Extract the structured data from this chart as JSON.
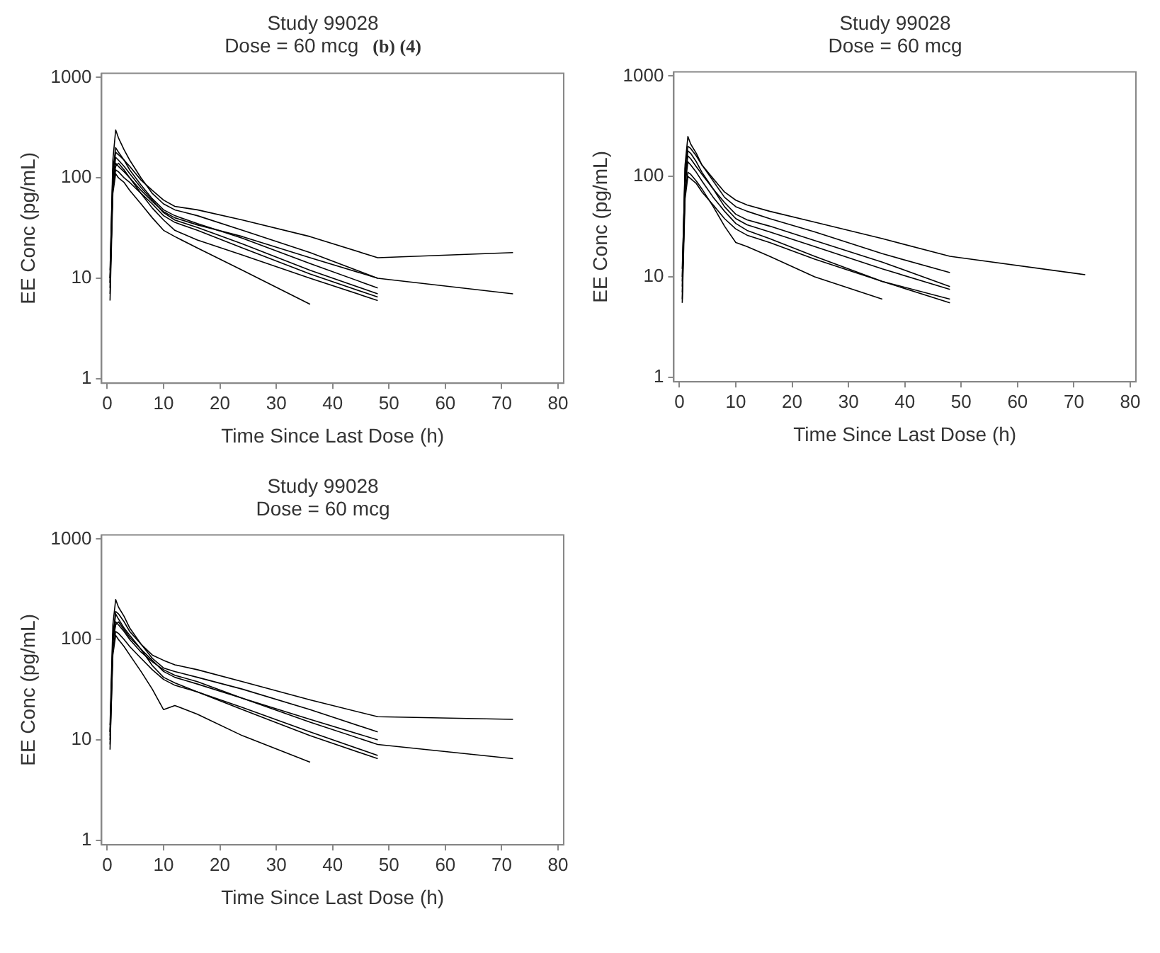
{
  "chart_data": [
    {
      "type": "line",
      "title": "Study 99028",
      "subtitle": "Dose =  60 mcg",
      "annotations": [
        "(b) (4)"
      ],
      "xlabel": "Time Since Last Dose (h)",
      "ylabel": "EE Conc (pg/mL)",
      "log": "y",
      "xlim": [
        -1,
        81
      ],
      "xticks": [
        0,
        10,
        20,
        30,
        40,
        50,
        60,
        70,
        80
      ],
      "ylim": [
        0.9,
        1100
      ],
      "yticks": [
        1,
        10,
        100,
        1000
      ],
      "grid": false,
      "series": [
        {
          "color": "#000000",
          "x": [
            0.5,
            1,
            1.5,
            2,
            3,
            4,
            6,
            8,
            10,
            12,
            16,
            24,
            36,
            48
          ],
          "values": [
            8,
            90,
            160,
            150,
            130,
            110,
            80,
            60,
            45,
            38,
            32,
            22,
            12,
            7
          ]
        },
        {
          "color": "#000000",
          "x": [
            0.5,
            1,
            1.5,
            2,
            3,
            4,
            6,
            8,
            10,
            12,
            16,
            24,
            36,
            48
          ],
          "values": [
            12,
            120,
            200,
            180,
            150,
            120,
            85,
            62,
            48,
            42,
            35,
            25,
            14,
            8
          ]
        },
        {
          "color": "#000000",
          "x": [
            0.5,
            1,
            1.5,
            2,
            3,
            4,
            6,
            8,
            10,
            12,
            16,
            24,
            36
          ],
          "values": [
            6,
            70,
            110,
            100,
            90,
            75,
            55,
            40,
            30,
            26,
            20,
            12,
            5.5
          ]
        },
        {
          "color": "#000000",
          "x": [
            0.5,
            1,
            1.5,
            2,
            3,
            4,
            6,
            8,
            10,
            12,
            16,
            24,
            36,
            48
          ],
          "values": [
            10,
            150,
            300,
            250,
            190,
            150,
            100,
            70,
            55,
            48,
            42,
            30,
            18,
            10
          ]
        },
        {
          "color": "#000000",
          "x": [
            0.5,
            1,
            1.5,
            2,
            3,
            4,
            6,
            8,
            10,
            12,
            16,
            24,
            36,
            48
          ],
          "values": [
            9,
            80,
            120,
            115,
            100,
            90,
            70,
            55,
            42,
            36,
            30,
            20,
            11,
            6.5
          ]
        },
        {
          "color": "#000000",
          "x": [
            0.5,
            1,
            1.5,
            2,
            3,
            4,
            6,
            8,
            10,
            12,
            16,
            24,
            36,
            48,
            72
          ],
          "values": [
            10,
            110,
            180,
            170,
            150,
            130,
            95,
            75,
            60,
            52,
            48,
            38,
            26,
            16,
            18
          ]
        },
        {
          "color": "#000000",
          "x": [
            0.5,
            1,
            1.5,
            2,
            3,
            4,
            6,
            8,
            10,
            12,
            16,
            24,
            36,
            48,
            72
          ],
          "values": [
            7,
            100,
            140,
            130,
            115,
            100,
            75,
            58,
            46,
            40,
            34,
            26,
            16,
            10,
            7
          ]
        },
        {
          "color": "#000000",
          "x": [
            0.5,
            1,
            1.5,
            2,
            3,
            4,
            6,
            8,
            10,
            12,
            16,
            24,
            36,
            48
          ],
          "values": [
            9,
            90,
            130,
            140,
            120,
            100,
            70,
            50,
            38,
            30,
            24,
            17,
            10,
            6
          ]
        }
      ]
    },
    {
      "type": "line",
      "title": "Study 99028",
      "subtitle": "Dose =  60 mcg",
      "xlabel": "Time Since Last Dose (h)",
      "ylabel": "EE Conc (pg/mL)",
      "log": "y",
      "xlim": [
        -1,
        81
      ],
      "xticks": [
        0,
        10,
        20,
        30,
        40,
        50,
        60,
        70,
        80
      ],
      "ylim": [
        0.9,
        1100
      ],
      "yticks": [
        1,
        10,
        100,
        1000
      ],
      "grid": false,
      "series": [
        {
          "color": "#000000",
          "x": [
            0.5,
            1,
            1.5,
            2,
            3,
            4,
            6,
            8,
            10,
            12,
            16,
            24,
            36,
            48
          ],
          "values": [
            6,
            90,
            180,
            170,
            140,
            110,
            75,
            50,
            38,
            33,
            28,
            20,
            12,
            7.5
          ]
        },
        {
          "color": "#000000",
          "x": [
            0.5,
            1,
            1.5,
            2,
            3,
            4,
            6,
            8,
            10,
            12,
            16,
            24,
            36,
            48
          ],
          "values": [
            10,
            130,
            250,
            210,
            170,
            130,
            90,
            62,
            50,
            45,
            38,
            28,
            17,
            11
          ]
        },
        {
          "color": "#000000",
          "x": [
            0.5,
            1,
            1.5,
            2,
            3,
            4,
            6,
            8,
            10,
            12,
            16,
            24,
            36
          ],
          "values": [
            8,
            70,
            110,
            105,
            90,
            75,
            50,
            32,
            22,
            20,
            16,
            10,
            6
          ]
        },
        {
          "color": "#000000",
          "x": [
            0.5,
            1,
            1.5,
            2,
            3,
            4,
            6,
            8,
            10,
            12,
            16,
            24,
            36,
            48,
            72
          ],
          "values": [
            9,
            120,
            200,
            190,
            160,
            130,
            95,
            70,
            58,
            52,
            45,
            35,
            24,
            16,
            10.5
          ]
        },
        {
          "color": "#000000",
          "x": [
            0.5,
            1,
            1.5,
            2,
            3,
            4,
            6,
            8,
            10,
            12,
            16,
            24,
            36,
            48
          ],
          "values": [
            7,
            80,
            140,
            130,
            110,
            90,
            62,
            45,
            34,
            29,
            24,
            16,
            9,
            5.5
          ]
        },
        {
          "color": "#000000",
          "x": [
            0.5,
            1,
            1.5,
            2,
            3,
            4,
            6,
            8,
            10,
            12,
            16,
            24,
            36,
            48
          ],
          "values": [
            12,
            100,
            160,
            150,
            125,
            105,
            75,
            55,
            42,
            37,
            32,
            23,
            14,
            8
          ]
        },
        {
          "color": "#000000",
          "x": [
            0.5,
            1,
            1.5,
            2,
            3,
            4,
            6,
            8,
            10,
            12,
            16,
            24,
            36,
            48
          ],
          "values": [
            5.5,
            60,
            100,
            95,
            85,
            70,
            52,
            38,
            30,
            26,
            22,
            15,
            9,
            6
          ]
        }
      ]
    },
    {
      "type": "line",
      "title": "Study 99028",
      "subtitle": "Dose =  60 mcg",
      "xlabel": "Time Since Last Dose (h)",
      "ylabel": "EE Conc (pg/mL)",
      "log": "y",
      "xlim": [
        -1,
        81
      ],
      "xticks": [
        0,
        10,
        20,
        30,
        40,
        50,
        60,
        70,
        80
      ],
      "ylim": [
        0.9,
        1100
      ],
      "yticks": [
        1,
        10,
        100,
        1000
      ],
      "grid": false,
      "series": [
        {
          "color": "#000000",
          "x": [
            0.5,
            1,
            1.5,
            2,
            3,
            4,
            6,
            8,
            10,
            12,
            16,
            24,
            36,
            48
          ],
          "values": [
            11,
            100,
            180,
            160,
            130,
            110,
            80,
            55,
            42,
            37,
            30,
            21,
            12,
            7
          ]
        },
        {
          "color": "#000000",
          "x": [
            0.5,
            1,
            1.5,
            2,
            3,
            4,
            6,
            8,
            10,
            12,
            16,
            24,
            36,
            48
          ],
          "values": [
            14,
            140,
            250,
            210,
            170,
            130,
            90,
            65,
            52,
            48,
            42,
            32,
            20,
            12
          ]
        },
        {
          "color": "#000000",
          "x": [
            0.5,
            1,
            1.5,
            2,
            3,
            4,
            6,
            8,
            10,
            12,
            16,
            24,
            36
          ],
          "values": [
            9,
            70,
            110,
            100,
            85,
            70,
            48,
            32,
            20,
            22,
            18,
            11,
            6
          ]
        },
        {
          "color": "#000000",
          "x": [
            0.5,
            1,
            1.5,
            2,
            3,
            4,
            6,
            8,
            10,
            12,
            16,
            24,
            36,
            48,
            72
          ],
          "values": [
            12,
            110,
            190,
            180,
            150,
            120,
            90,
            70,
            62,
            56,
            50,
            38,
            25,
            17,
            16
          ]
        },
        {
          "color": "#000000",
          "x": [
            0.5,
            1,
            1.5,
            2,
            3,
            4,
            6,
            8,
            10,
            12,
            16,
            24,
            36,
            48,
            72
          ],
          "values": [
            10,
            90,
            150,
            140,
            120,
            100,
            75,
            60,
            50,
            44,
            38,
            26,
            15,
            9,
            6.5
          ]
        },
        {
          "color": "#000000",
          "x": [
            0.5,
            1,
            1.5,
            2,
            3,
            4,
            6,
            8,
            10,
            12,
            16,
            24,
            36,
            48
          ],
          "values": [
            8,
            80,
            120,
            115,
            100,
            85,
            65,
            50,
            40,
            35,
            30,
            20,
            11,
            6.5
          ]
        },
        {
          "color": "#000000",
          "x": [
            0.5,
            1,
            1.5,
            2,
            3,
            4,
            6,
            8,
            10,
            12,
            16,
            24,
            36,
            48
          ],
          "values": [
            12,
            95,
            140,
            150,
            125,
            105,
            80,
            62,
            48,
            42,
            36,
            26,
            16,
            10
          ]
        }
      ]
    }
  ]
}
